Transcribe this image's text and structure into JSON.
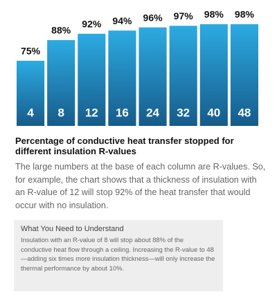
{
  "chart_data": {
    "type": "bar",
    "categories": [
      "4",
      "8",
      "12",
      "16",
      "24",
      "32",
      "40",
      "48"
    ],
    "values": [
      75,
      88,
      92,
      94,
      96,
      97,
      98,
      98
    ],
    "value_labels": [
      "75%",
      "88%",
      "92%",
      "94%",
      "96%",
      "97%",
      "98%",
      "98%"
    ],
    "ylim": [
      34,
      100
    ],
    "gradient": [
      "#2cabe2",
      "#165b8a"
    ],
    "title": "Percentage of conductive heat transfer stopped for different insulation R-values",
    "description": "The large numbers at the base of each column are R-values. So, for example, the chart shows that a thickness of insulation with an R-value of 12 will stop 92% of the heat transfer that would occur with no insulation.",
    "box": {
      "heading": "What You Need to Understand",
      "text": "Insulation with an R-value of 8 will stop about 88% of the conductive heat flow through a ceiling. Increasing the R-value to 48—adding six times more insulation thickness—will only increase the thermal performance by about 10%."
    }
  }
}
